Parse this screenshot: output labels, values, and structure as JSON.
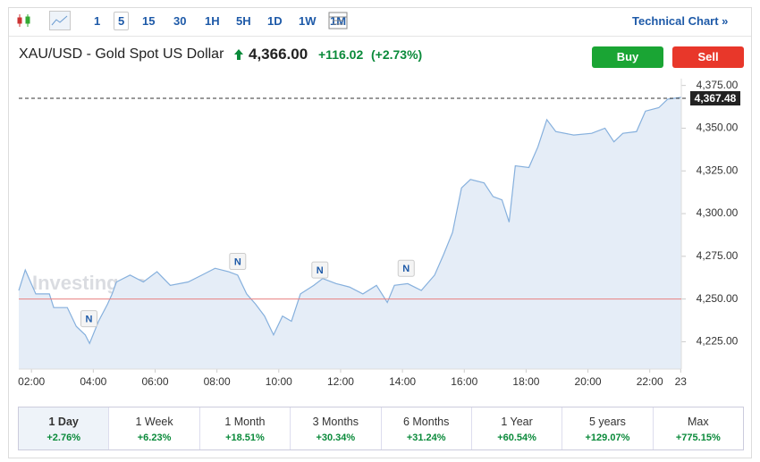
{
  "toolbar": {
    "intervals": [
      "1",
      "5",
      "15",
      "30",
      "1H",
      "5H",
      "1D",
      "1W",
      "1M"
    ],
    "selected": "5",
    "link": "Technical Chart »"
  },
  "header": {
    "title": "XAU/USD - Gold Spot US Dollar",
    "price": "4,366.00",
    "change": "+116.02",
    "change_pct": "(+2.73%)",
    "buy": "Buy",
    "sell": "Sell"
  },
  "chart_data": {
    "type": "line",
    "watermark": "Investing.com",
    "x": [
      1.59,
      1.8,
      2.14,
      2.58,
      2.72,
      3.16,
      3.45,
      3.74,
      3.88,
      4.17,
      4.46,
      4.61,
      4.75,
      5.19,
      5.62,
      6.06,
      6.49,
      7.07,
      7.51,
      7.94,
      8.38,
      8.67,
      8.96,
      9.25,
      9.54,
      9.83,
      10.12,
      10.41,
      10.7,
      11.13,
      11.42,
      11.86,
      12.29,
      12.72,
      13.16,
      13.51,
      13.74,
      14.17,
      14.61,
      15.04,
      15.33,
      15.62,
      15.91,
      16.2,
      16.64,
      16.93,
      17.22,
      17.45,
      17.65,
      18.09,
      18.38,
      18.67,
      18.96,
      19.54,
      20.12,
      20.55,
      20.84,
      21.13,
      21.57,
      21.86,
      22.29,
      22.58,
      23.01
    ],
    "series": [
      {
        "name": "XAU/USD",
        "color": "#86b0dd",
        "fill": "#e5edf7",
        "values": [
          4255,
          4267,
          4253,
          4253,
          4245,
          4245,
          4234,
          4229,
          4224,
          4237,
          4247,
          4253,
          4260,
          4264,
          4260,
          4266,
          4258,
          4260,
          4264,
          4268,
          4266,
          4264,
          4253,
          4247,
          4240,
          4229,
          4240,
          4237,
          4253,
          4258,
          4262,
          4259,
          4257,
          4253,
          4258,
          4248,
          4258,
          4259,
          4255,
          4264,
          4276,
          4289,
          4315,
          4320,
          4318,
          4310,
          4308,
          4295,
          4328,
          4327,
          4339,
          4355,
          4348,
          4346,
          4347,
          4350,
          4342,
          4347,
          4348,
          4360,
          4362,
          4367,
          4368
        ]
      }
    ],
    "xlim": [
      1.59,
      23.02
    ],
    "ylim": [
      4209,
      4379
    ],
    "xticks": [
      {
        "value": 2,
        "label": "02:00"
      },
      {
        "value": 4,
        "label": "04:00"
      },
      {
        "value": 6,
        "label": "06:00"
      },
      {
        "value": 8,
        "label": "08:00"
      },
      {
        "value": 10,
        "label": "10:00"
      },
      {
        "value": 12,
        "label": "12:00"
      },
      {
        "value": 14,
        "label": "14:00"
      },
      {
        "value": 16,
        "label": "16:00"
      },
      {
        "value": 18,
        "label": "18:00"
      },
      {
        "value": 20,
        "label": "20:00"
      },
      {
        "value": 22,
        "label": "22:00"
      },
      {
        "value": 23,
        "label": "23"
      }
    ],
    "yticks": [
      {
        "value": 4225,
        "label": "4,225.00"
      },
      {
        "value": 4250,
        "label": "4,250.00"
      },
      {
        "value": 4275,
        "label": "4,275.00"
      },
      {
        "value": 4300,
        "label": "4,300.00"
      },
      {
        "value": 4325,
        "label": "4,325.00"
      },
      {
        "value": 4350,
        "label": "4,350.00"
      },
      {
        "value": 4375,
        "label": "4,375.00"
      }
    ],
    "last_price": {
      "value": 4367.48,
      "label": "4,367.48"
    },
    "reference_line": {
      "value": 4250,
      "color": "#e88080"
    },
    "markers": [
      {
        "x": 3.86,
        "y": 4238.5,
        "label": "N"
      },
      {
        "x": 8.67,
        "y": 4272,
        "label": "N"
      },
      {
        "x": 11.33,
        "y": 4267,
        "label": "N"
      },
      {
        "x": 14.12,
        "y": 4268,
        "label": "N"
      }
    ]
  },
  "periods": [
    {
      "name": "1 Day",
      "change": "+2.76%"
    },
    {
      "name": "1 Week",
      "change": "+6.23%"
    },
    {
      "name": "1 Month",
      "change": "+18.51%"
    },
    {
      "name": "3 Months",
      "change": "+30.34%"
    },
    {
      "name": "6 Months",
      "change": "+31.24%"
    },
    {
      "name": "1 Year",
      "change": "+60.54%"
    },
    {
      "name": "5 years",
      "change": "+129.07%"
    },
    {
      "name": "Max",
      "change": "+775.15%"
    }
  ]
}
